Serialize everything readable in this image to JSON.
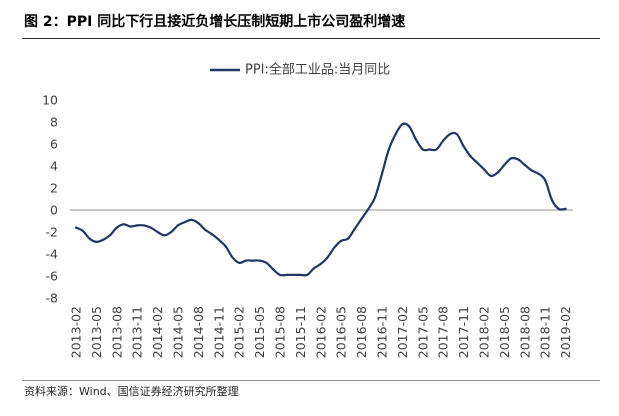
{
  "figure": {
    "source_note": "资料来源：Wind、国信证券经济研究所整理"
  },
  "colors": {
    "series_line": "#1F3864",
    "zero_line": "#A6A6A6",
    "axis_text": "#404040"
  },
  "chart_data": {
    "type": "line",
    "title": "图 2：PPI 同比下行且接近负增长压制短期上市公司盈利增速",
    "x": [
      "2013-02",
      "2013-03",
      "2013-04",
      "2013-05",
      "2013-06",
      "2013-07",
      "2013-08",
      "2013-09",
      "2013-10",
      "2013-11",
      "2013-12",
      "2014-01",
      "2014-02",
      "2014-03",
      "2014-04",
      "2014-05",
      "2014-06",
      "2014-07",
      "2014-08",
      "2014-09",
      "2014-10",
      "2014-11",
      "2014-12",
      "2015-01",
      "2015-02",
      "2015-03",
      "2015-04",
      "2015-05",
      "2015-06",
      "2015-07",
      "2015-08",
      "2015-09",
      "2015-10",
      "2015-11",
      "2015-12",
      "2016-01",
      "2016-02",
      "2016-03",
      "2016-04",
      "2016-05",
      "2016-06",
      "2016-07",
      "2016-08",
      "2016-09",
      "2016-10",
      "2016-11",
      "2016-12",
      "2017-01",
      "2017-02",
      "2017-03",
      "2017-04",
      "2017-05",
      "2017-06",
      "2017-07",
      "2017-08",
      "2017-09",
      "2017-10",
      "2017-11",
      "2017-12",
      "2018-01",
      "2018-02",
      "2018-03",
      "2018-04",
      "2018-05",
      "2018-06",
      "2018-07",
      "2018-08",
      "2018-09",
      "2018-10",
      "2018-11",
      "2018-12",
      "2019-01",
      "2019-02"
    ],
    "series": [
      {
        "name": "PPI:全部工业品:当月同比",
        "values": [
          -1.6,
          -1.9,
          -2.6,
          -2.9,
          -2.7,
          -2.3,
          -1.6,
          -1.3,
          -1.5,
          -1.4,
          -1.4,
          -1.6,
          -2.0,
          -2.3,
          -2.0,
          -1.4,
          -1.1,
          -0.9,
          -1.2,
          -1.8,
          -2.2,
          -2.7,
          -3.3,
          -4.3,
          -4.8,
          -4.6,
          -4.6,
          -4.6,
          -4.8,
          -5.4,
          -5.9,
          -5.9,
          -5.9,
          -5.9,
          -5.9,
          -5.3,
          -4.9,
          -4.3,
          -3.4,
          -2.8,
          -2.6,
          -1.7,
          -0.8,
          0.1,
          1.2,
          3.3,
          5.5,
          6.9,
          7.8,
          7.6,
          6.4,
          5.5,
          5.5,
          5.5,
          6.3,
          6.9,
          6.9,
          5.8,
          4.9,
          4.3,
          3.7,
          3.1,
          3.4,
          4.1,
          4.7,
          4.6,
          4.1,
          3.6,
          3.3,
          2.7,
          0.9,
          0.1,
          0.1
        ]
      }
    ],
    "y_ticks": [
      10,
      8,
      6,
      4,
      2,
      0,
      -2,
      -4,
      -6,
      -8
    ],
    "ylim": [
      -8,
      10
    ],
    "grid": false,
    "legend": "top-center"
  }
}
